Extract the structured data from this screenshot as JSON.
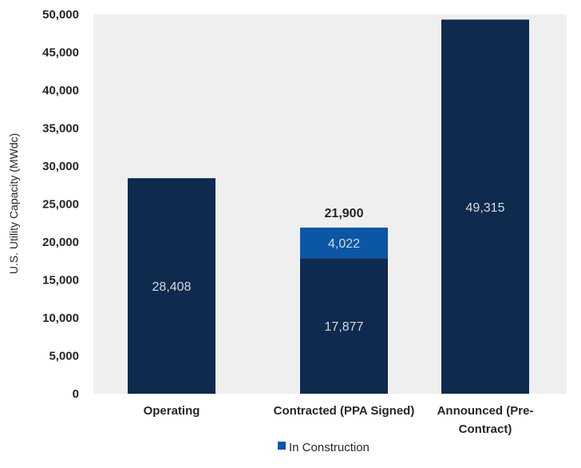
{
  "chart_data": {
    "type": "bar",
    "stacked": true,
    "ylabel": "U.S. Utility Capacity (MWdc)",
    "ylim": [
      0,
      50000
    ],
    "yticks": [
      0,
      5000,
      10000,
      15000,
      20000,
      25000,
      30000,
      35000,
      40000,
      45000,
      50000
    ],
    "ytick_labels": [
      "0",
      "5,000",
      "10,000",
      "15,000",
      "20,000",
      "25,000",
      "30,000",
      "35,000",
      "40,000",
      "45,000",
      "50,000"
    ],
    "categories": [
      [
        "Operating"
      ],
      [
        "Contracted (PPA Signed)"
      ],
      [
        "Announced (Pre-",
        "Contract)"
      ]
    ],
    "series": [
      {
        "values": [
          28408,
          17877,
          49315
        ],
        "labels": [
          "28,408",
          "17,877",
          "49,315"
        ],
        "color": "#0e2a4f"
      },
      {
        "name": "In Construction",
        "values": [
          0,
          4022,
          0
        ],
        "labels": [
          "",
          "4,022",
          ""
        ],
        "color": "#0b56a5"
      }
    ],
    "totals": [
      "",
      "21,900",
      ""
    ],
    "legend": {
      "position": "bottom",
      "entries": [
        "In Construction"
      ]
    },
    "plot_background": "#efefef",
    "grid": false
  }
}
